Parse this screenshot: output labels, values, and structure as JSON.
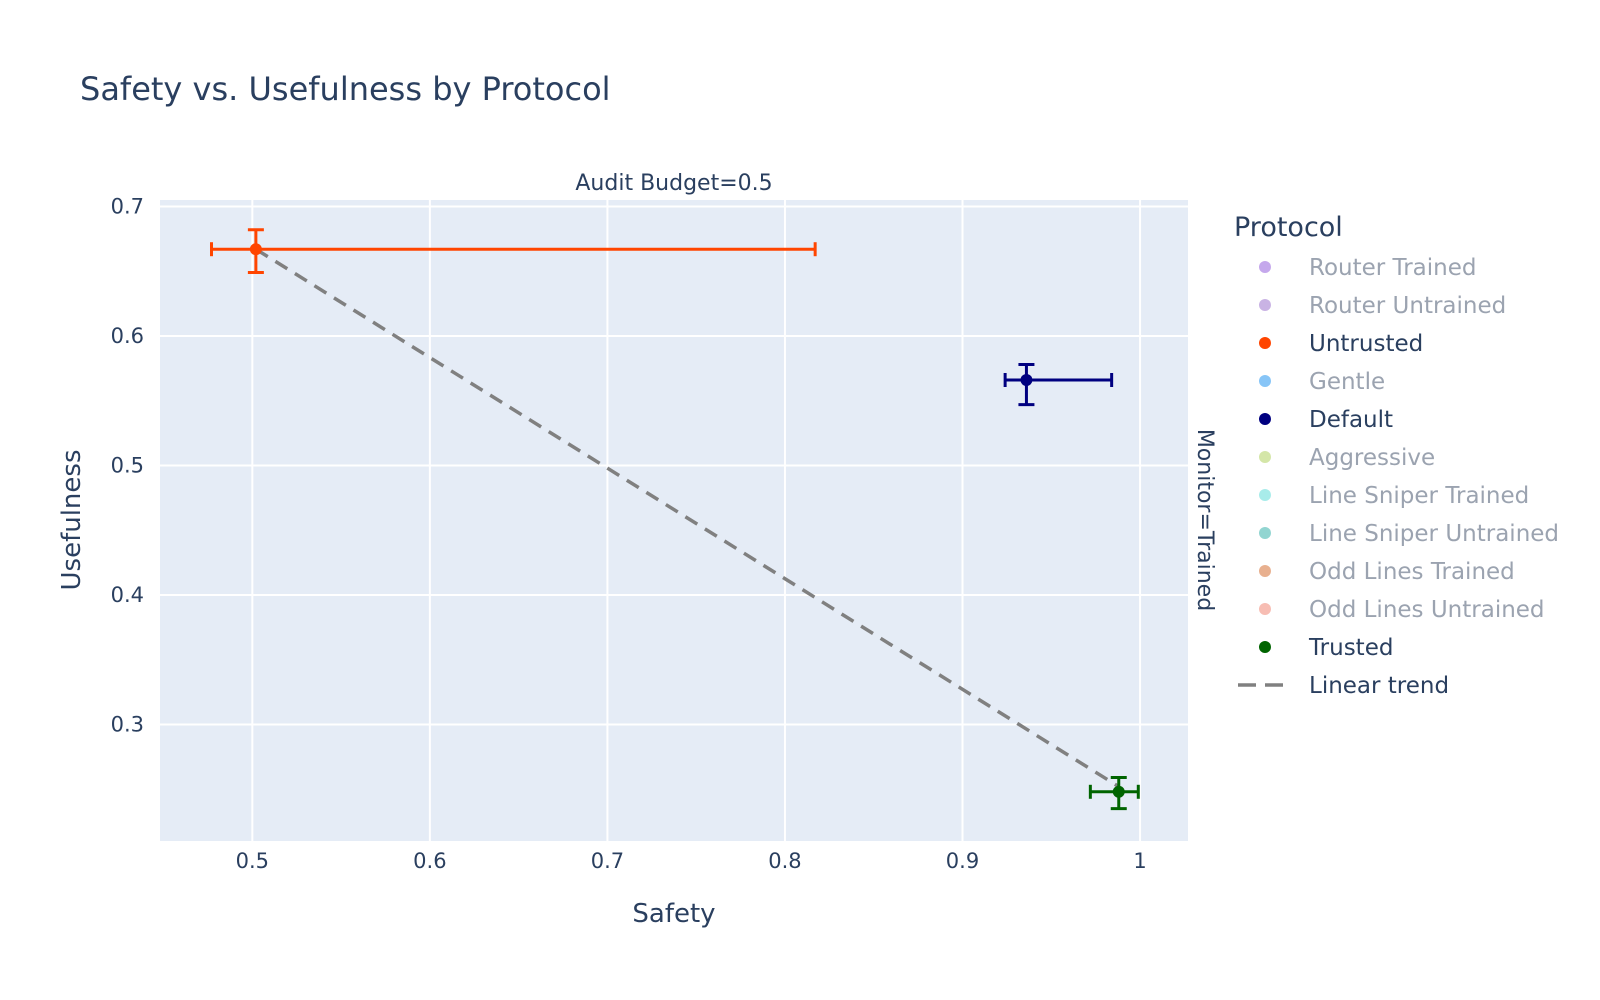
{
  "chart_data": {
    "type": "scatter",
    "title": "Safety vs. Usefulness by Protocol",
    "facet_column_label": "Audit Budget=0.5",
    "facet_row_label": "Monitor=Trained",
    "xlabel": "Safety",
    "ylabel": "Usefulness",
    "xlim": [
      0.448,
      1.027
    ],
    "ylim": [
      0.21,
      0.705
    ],
    "x_ticks": [
      {
        "value": 0.5,
        "label": "0.5"
      },
      {
        "value": 0.6,
        "label": "0.6"
      },
      {
        "value": 0.7,
        "label": "0.7"
      },
      {
        "value": 0.8,
        "label": "0.8"
      },
      {
        "value": 0.9,
        "label": "0.9"
      },
      {
        "value": 1.0,
        "label": "1"
      }
    ],
    "y_ticks": [
      {
        "value": 0.3,
        "label": "0.3"
      },
      {
        "value": 0.4,
        "label": "0.4"
      },
      {
        "value": 0.5,
        "label": "0.5"
      },
      {
        "value": 0.6,
        "label": "0.6"
      },
      {
        "value": 0.7,
        "label": "0.7"
      }
    ],
    "grid": true,
    "legend_title": "Protocol",
    "legend_position": "right",
    "series": [
      {
        "name": "Router Trained",
        "color": "#c5a8ec",
        "shown": false
      },
      {
        "name": "Router Untrained",
        "color": "#c9b3e4",
        "shown": false
      },
      {
        "name": "Untrusted",
        "color": "#ff4500",
        "shown": true,
        "points": [
          {
            "x": 0.502,
            "y": 0.667,
            "x_err_minus": 0.025,
            "x_err_plus": 0.315,
            "y_err_minus": 0.018,
            "y_err_plus": 0.015
          }
        ]
      },
      {
        "name": "Gentle",
        "color": "#87c5f7",
        "shown": false
      },
      {
        "name": "Default",
        "color": "#000080",
        "shown": true,
        "points": [
          {
            "x": 0.936,
            "y": 0.566,
            "x_err_minus": 0.012,
            "x_err_plus": 0.048,
            "y_err_minus": 0.019,
            "y_err_plus": 0.012
          }
        ]
      },
      {
        "name": "Aggressive",
        "color": "#d4e6a8",
        "shown": false
      },
      {
        "name": "Line Sniper Trained",
        "color": "#a8ecea",
        "shown": false
      },
      {
        "name": "Line Sniper Untrained",
        "color": "#92d5d1",
        "shown": false
      },
      {
        "name": "Odd Lines Trained",
        "color": "#e8b08f",
        "shown": false
      },
      {
        "name": "Odd Lines Untrained",
        "color": "#f7bdb3",
        "shown": false
      },
      {
        "name": "Trusted",
        "color": "#006400",
        "shown": true,
        "points": [
          {
            "x": 0.988,
            "y": 0.248,
            "x_err_minus": 0.016,
            "x_err_plus": 0.011,
            "y_err_minus": 0.013,
            "y_err_plus": 0.011
          }
        ]
      }
    ],
    "trend": {
      "name": "Linear trend",
      "color": "#808080",
      "x": [
        0.502,
        0.988
      ],
      "y": [
        0.667,
        0.252
      ]
    }
  }
}
